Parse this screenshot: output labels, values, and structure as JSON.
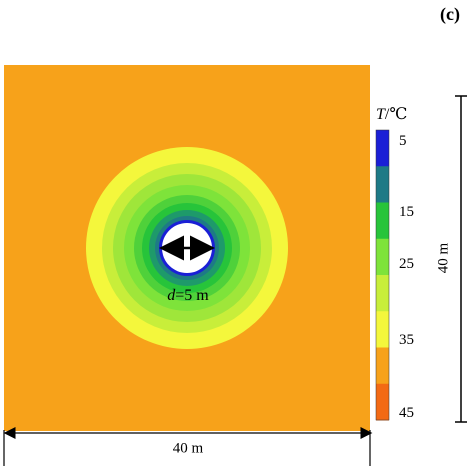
{
  "panel_label": "(c)",
  "colorbar": {
    "title_var": "T",
    "title_unit": "/℃",
    "tick_labels": [
      "5",
      "15",
      "25",
      "35",
      "45"
    ],
    "colors": [
      "#1a1fd6",
      "#1e7a86",
      "#27c43a",
      "#7ee33a",
      "#c8ee3a",
      "#f4f73c",
      "#f7a21a",
      "#f36a14"
    ]
  },
  "field": {
    "background_color": "#f7a21a",
    "contour_colors": [
      "#f4f73c",
      "#c8ee3a",
      "#9fe63a",
      "#7ee33a",
      "#4fd13a",
      "#27c43a",
      "#1e9a6a",
      "#1e7a86",
      "#1a1fd6"
    ],
    "hole_color": "#ffffff"
  },
  "diameter_label_var": "d",
  "diameter_label_value": "=5 m",
  "dimension_vertical": "40 m",
  "dimension_horizontal": "40 m"
}
